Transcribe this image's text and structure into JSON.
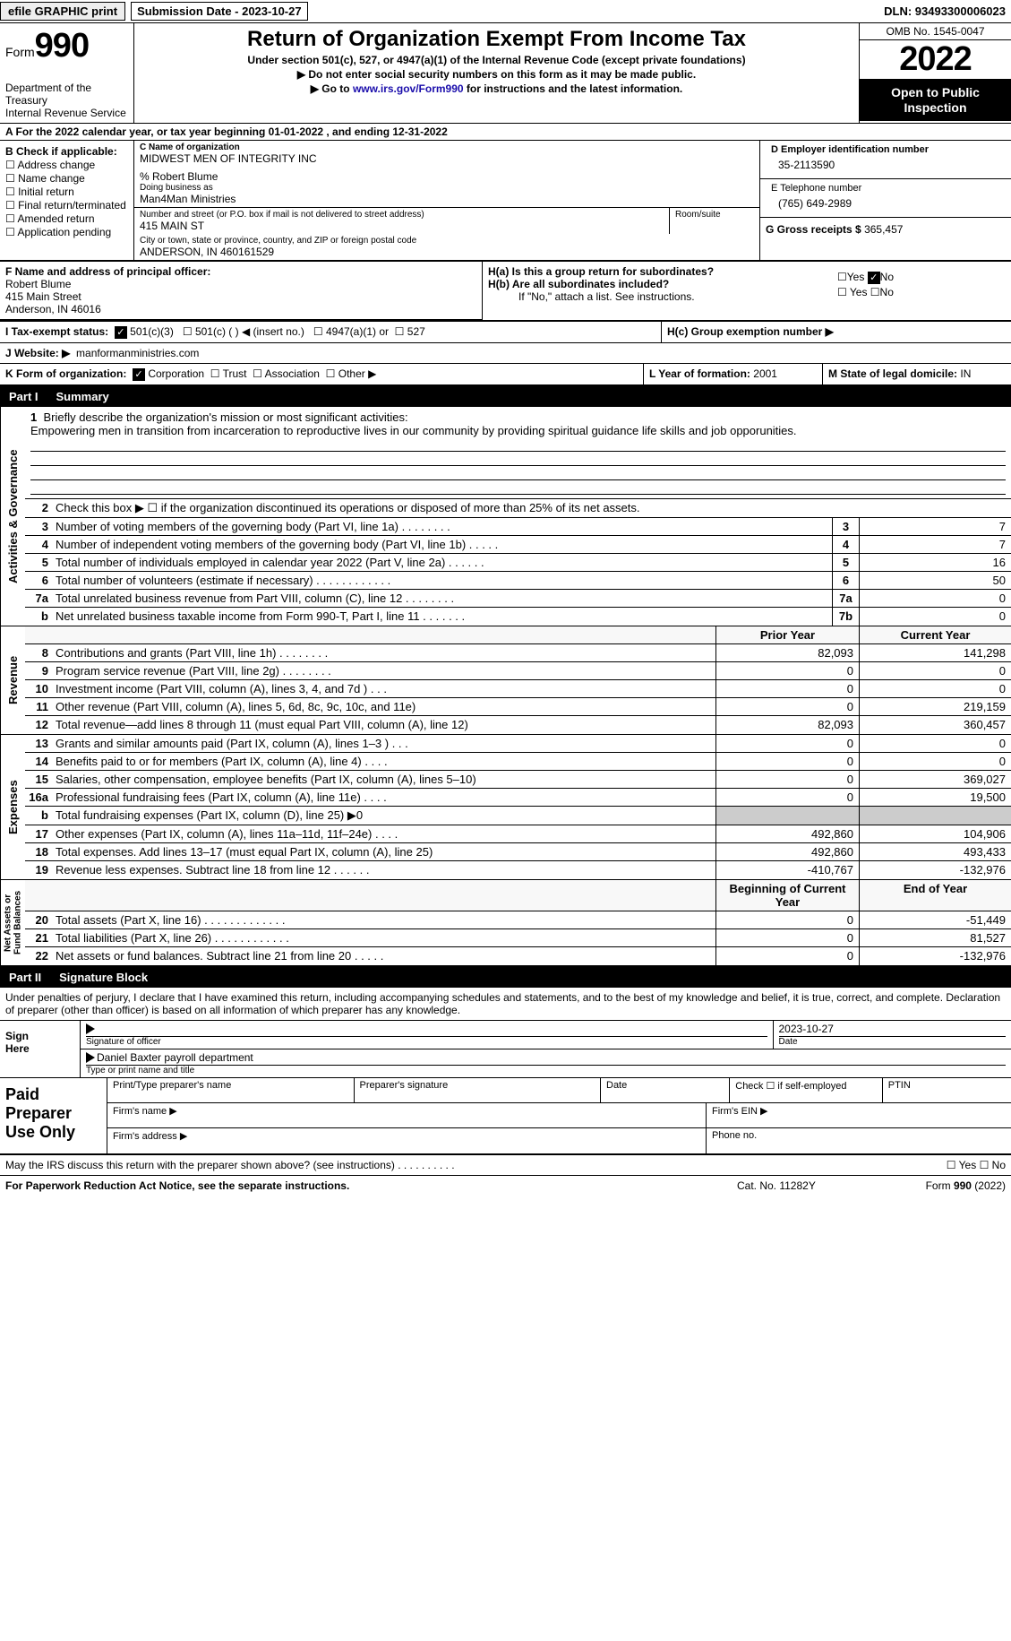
{
  "topbar": {
    "efile": "efile GRAPHIC print",
    "submission": "Submission Date - 2023-10-27",
    "dln": "DLN: 93493300006023"
  },
  "header": {
    "form_word": "Form",
    "form_num": "990",
    "dept": "Department of the Treasury\nInternal Revenue Service",
    "title": "Return of Organization Exempt From Income Tax",
    "sub1": "Under section 501(c), 527, or 4947(a)(1) of the Internal Revenue Code (except private foundations)",
    "sub2a": "▶ Do not enter social security numbers on this form as it may be made public.",
    "sub2b": "▶ Go to ",
    "link": "www.irs.gov/Form990",
    "sub2c": " for instructions and the latest information.",
    "omb": "OMB No. 1545-0047",
    "year": "2022",
    "open": "Open to Public\nInspection"
  },
  "rowA": "A For the 2022 calendar year, or tax year beginning 01-01-2022    , and ending 12-31-2022",
  "colB": {
    "hdr": "B Check if applicable:",
    "items": [
      "Address change",
      "Name change",
      "Initial return",
      "Final return/terminated",
      "Amended return",
      "Application pending"
    ]
  },
  "colC": {
    "name_lbl": "C Name of organization",
    "name": "MIDWEST MEN OF INTEGRITY INC",
    "care": "% Robert Blume",
    "dba_lbl": "Doing business as",
    "dba": "Man4Man Ministries",
    "addr_lbl": "Number and street (or P.O. box if mail is not delivered to street address)",
    "room_lbl": "Room/suite",
    "addr": "415 MAIN ST",
    "city_lbl": "City or town, state or province, country, and ZIP or foreign postal code",
    "city": "ANDERSON, IN  460161529"
  },
  "colD": {
    "ein_lbl": "D Employer identification number",
    "ein": "35-2113590",
    "tel_lbl": "E Telephone number",
    "tel": "(765) 649-2989",
    "gross_lbl": "G Gross receipts $",
    "gross": "365,457"
  },
  "rowF": {
    "lbl": "F Name and address of principal officer:",
    "name": "Robert Blume",
    "addr1": "415 Main Street",
    "addr2": "Anderson, IN  46016"
  },
  "rowH": {
    "ha": "H(a)  Is this a group return for subordinates?",
    "hb": "H(b)  Are all subordinates included?",
    "hb_note": "If \"No,\" attach a list. See instructions.",
    "hc": "H(c)  Group exemption number ▶"
  },
  "rowI": {
    "lbl": "I    Tax-exempt status:",
    "opts": [
      "501(c)(3)",
      "501(c) (  ) ◀ (insert no.)",
      "4947(a)(1) or",
      "527"
    ]
  },
  "rowJ": {
    "lbl": "J    Website: ▶",
    "val": "manformanministries.com"
  },
  "rowK": {
    "lbl": "K Form of organization:",
    "opts": [
      "Corporation",
      "Trust",
      "Association",
      "Other ▶"
    ],
    "l_lbl": "L Year of formation:",
    "l_val": "2001",
    "m_lbl": "M State of legal domicile:",
    "m_val": "IN"
  },
  "part1": {
    "num": "Part I",
    "title": "Summary"
  },
  "mission": {
    "num": "1",
    "lbl": "Briefly describe the organization's mission or most significant activities:",
    "text": "Empowering men in transition from incarceration to reproductive lives in our community by providing spiritual guidance life skills and job opporunities."
  },
  "line2": {
    "num": "2",
    "txt": "Check this box ▶ ☐  if the organization discontinued its operations or disposed of more than 25% of its net assets."
  },
  "gov_rows": [
    {
      "n": "3",
      "t": "Number of voting members of the governing body (Part VI, line 1a)   .    .    .    .    .    .    .    .",
      "c": "3",
      "v": "7"
    },
    {
      "n": "4",
      "t": "Number of independent voting members of the governing body (Part VI, line 1b)   .    .    .    .    .",
      "c": "4",
      "v": "7"
    },
    {
      "n": "5",
      "t": "Total number of individuals employed in calendar year 2022 (Part V, line 2a)    .    .    .    .    .    .",
      "c": "5",
      "v": "16"
    },
    {
      "n": "6",
      "t": "Total number of volunteers (estimate if necessary)    .    .    .    .    .    .    .    .    .    .    .    .",
      "c": "6",
      "v": "50"
    },
    {
      "n": "7a",
      "t": "Total unrelated business revenue from Part VIII, column (C), line 12   .    .    .    .    .    .    .    .",
      "c": "7a",
      "v": "0"
    },
    {
      "n": "b",
      "t": "Net unrelated business taxable income from Form 990-T, Part I, line 11    .    .    .    .    .    .    .",
      "c": "7b",
      "v": "0"
    }
  ],
  "pycy": {
    "py": "Prior Year",
    "cy": "Current Year"
  },
  "rev_rows": [
    {
      "n": "8",
      "t": "Contributions and grants (Part VIII, line 1h)    .    .    .    .    .    .    .    .",
      "py": "82,093",
      "cy": "141,298"
    },
    {
      "n": "9",
      "t": "Program service revenue (Part VIII, line 2g)    .    .    .    .    .    .    .    .",
      "py": "0",
      "cy": "0"
    },
    {
      "n": "10",
      "t": "Investment income (Part VIII, column (A), lines 3, 4, and 7d )    .    .    .",
      "py": "0",
      "cy": "0"
    },
    {
      "n": "11",
      "t": "Other revenue (Part VIII, column (A), lines 5, 6d, 8c, 9c, 10c, and 11e)",
      "py": "0",
      "cy": "219,159"
    },
    {
      "n": "12",
      "t": "Total revenue—add lines 8 through 11 (must equal Part VIII, column (A), line 12)",
      "py": "82,093",
      "cy": "360,457"
    }
  ],
  "exp_rows": [
    {
      "n": "13",
      "t": "Grants and similar amounts paid (Part IX, column (A), lines 1–3 )  .    .    .",
      "py": "0",
      "cy": "0"
    },
    {
      "n": "14",
      "t": "Benefits paid to or for members (Part IX, column (A), line 4)  .    .    .    .",
      "py": "0",
      "cy": "0"
    },
    {
      "n": "15",
      "t": "Salaries, other compensation, employee benefits (Part IX, column (A), lines 5–10)",
      "py": "0",
      "cy": "369,027"
    },
    {
      "n": "16a",
      "t": "Professional fundraising fees (Part IX, column (A), line 11e)    .    .    .    .",
      "py": "0",
      "cy": "19,500"
    },
    {
      "n": "b",
      "t": "Total fundraising expenses (Part IX, column (D), line 25) ▶0",
      "py": "",
      "cy": "",
      "shade": true
    },
    {
      "n": "17",
      "t": "Other expenses (Part IX, column (A), lines 11a–11d, 11f–24e)  .    .    .    .",
      "py": "492,860",
      "cy": "104,906"
    },
    {
      "n": "18",
      "t": "Total expenses. Add lines 13–17 (must equal Part IX, column (A), line 25)",
      "py": "492,860",
      "cy": "493,433"
    },
    {
      "n": "19",
      "t": "Revenue less expenses. Subtract line 18 from line 12  .    .    .    .    .    .",
      "py": "-410,767",
      "cy": "-132,976"
    }
  ],
  "bcyecy": {
    "b": "Beginning of Current Year",
    "e": "End of Year"
  },
  "na_rows": [
    {
      "n": "20",
      "t": "Total assets (Part X, line 16)  .    .    .    .    .    .    .    .    .    .    .    .    .",
      "py": "0",
      "cy": "-51,449"
    },
    {
      "n": "21",
      "t": "Total liabilities (Part X, line 26)  .    .    .    .    .    .    .    .    .    .    .    .",
      "py": "0",
      "cy": "81,527"
    },
    {
      "n": "22",
      "t": "Net assets or fund balances. Subtract line 21 from line 20  .    .    .    .    .",
      "py": "0",
      "cy": "-132,976"
    }
  ],
  "sec_labels": {
    "gov": "Activities & Governance",
    "rev": "Revenue",
    "exp": "Expenses",
    "na": "Net Assets or\nFund Balances"
  },
  "part2": {
    "num": "Part II",
    "title": "Signature Block"
  },
  "sig": {
    "intro": "Under penalties of perjury, I declare that I have examined this return, including accompanying schedules and statements, and to the best of my knowledge and belief, it is true, correct, and complete. Declaration of preparer (other than officer) is based on all information of which preparer has any knowledge.",
    "sign_here": "Sign\nHere",
    "sig_of": "Signature of officer",
    "date_v": "2023-10-27",
    "date_l": "Date",
    "name": "Daniel Baxter  payroll department",
    "name_l": "Type or print name and title"
  },
  "paid": {
    "lbl": "Paid\nPreparer\nUse Only",
    "r1": [
      "Print/Type preparer's name",
      "Preparer's signature",
      "Date",
      "Check ☐ if self-employed",
      "PTIN"
    ],
    "r2a": "Firm's name    ▶",
    "r2b": "Firm's EIN ▶",
    "r3a": "Firm's address ▶",
    "r3b": "Phone no."
  },
  "may": {
    "txt": "May the IRS discuss this return with the preparer shown above? (see instructions)   .    .    .    .    .    .    .    .    .    .",
    "yn": "☐ Yes   ☐ No"
  },
  "footer": {
    "f1": "For Paperwork Reduction Act Notice, see the separate instructions.",
    "f2": "Cat. No. 11282Y",
    "f3": "Form 990 (2022)"
  }
}
